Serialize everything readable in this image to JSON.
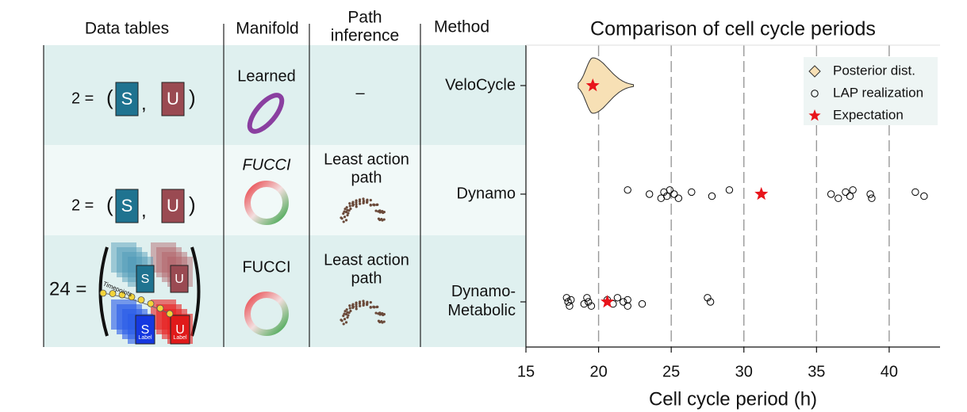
{
  "table": {
    "headers": [
      "Data tables",
      "Manifold",
      "Path inference",
      "Method"
    ],
    "matrix_labels": [
      "S",
      "U"
    ],
    "timepoints": "Timepoints",
    "label_text": "Label",
    "rows": [
      {
        "count": "2 =",
        "manifold": "Learned",
        "path": "–"
      },
      {
        "count": "2 =",
        "manifold": "FUCCI",
        "path": "Least action path"
      },
      {
        "count": "24 =",
        "manifold": "FUCCI",
        "path": "Least action path"
      }
    ]
  },
  "chart_data": {
    "type": "strip",
    "title": "Comparison of cell cycle periods",
    "x_label": "Cell cycle period (h)",
    "categories": [
      "VeloCycle",
      "Dynamo",
      "Dynamo-Metabolic"
    ],
    "xlim": [
      15,
      43.5
    ],
    "xticks": [
      15,
      20,
      25,
      30,
      35,
      40
    ],
    "grid": true,
    "legend": "upper right",
    "series": [
      {
        "name": "Posterior dist.",
        "color": "#f7e0b5",
        "kind": "violin",
        "values": [
          19.6,
          null,
          null
        ],
        "ranges": [
          [
            18.6,
            22.4
          ],
          null,
          null
        ]
      },
      {
        "name": "LAP realization",
        "color": "#000000",
        "kind": "points",
        "values": [
          [],
          [
            22,
            23.5,
            24.3,
            24.5,
            24.7,
            24.9,
            25.2,
            25.5,
            26.4,
            27.8,
            29,
            36,
            36.5,
            37,
            37.3,
            37.5,
            38.7,
            38.8,
            41.8,
            42.4
          ],
          [
            17.8,
            17.9,
            18,
            18.1,
            19,
            19.2,
            19.3,
            19.5,
            20.6,
            21,
            21.3,
            21.7,
            22,
            22,
            23,
            27.5,
            27.7
          ]
        ]
      },
      {
        "name": "Expectation",
        "color": "#e8141b",
        "kind": "star",
        "values": [
          19.6,
          31.2,
          20.6
        ]
      }
    ]
  }
}
